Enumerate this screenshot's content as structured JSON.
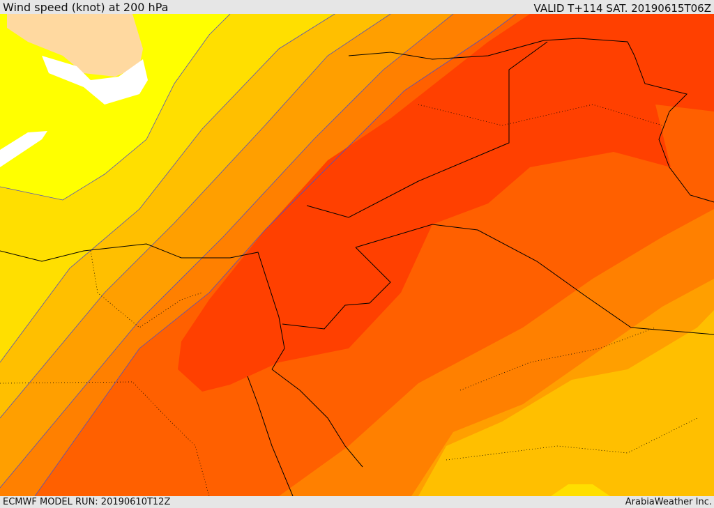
{
  "header": {
    "title": "Wind speed (knot) at 200 hPa",
    "valid": "VALID T+114 SAT. 20190615T06Z"
  },
  "footer": {
    "model_run": "ECMWF MODEL RUN: 20190610T12Z",
    "brand": "ArabiaWeather Inc."
  },
  "map": {
    "band_colors": [
      "#ffff00",
      "#ffdf00",
      "#ffbf00",
      "#ff9f00",
      "#ff8000",
      "#ff6000",
      "#ff4000"
    ],
    "land_color": "#ffd9a0",
    "contour_color": "#5050c0",
    "coastline_color": "#000000"
  }
}
